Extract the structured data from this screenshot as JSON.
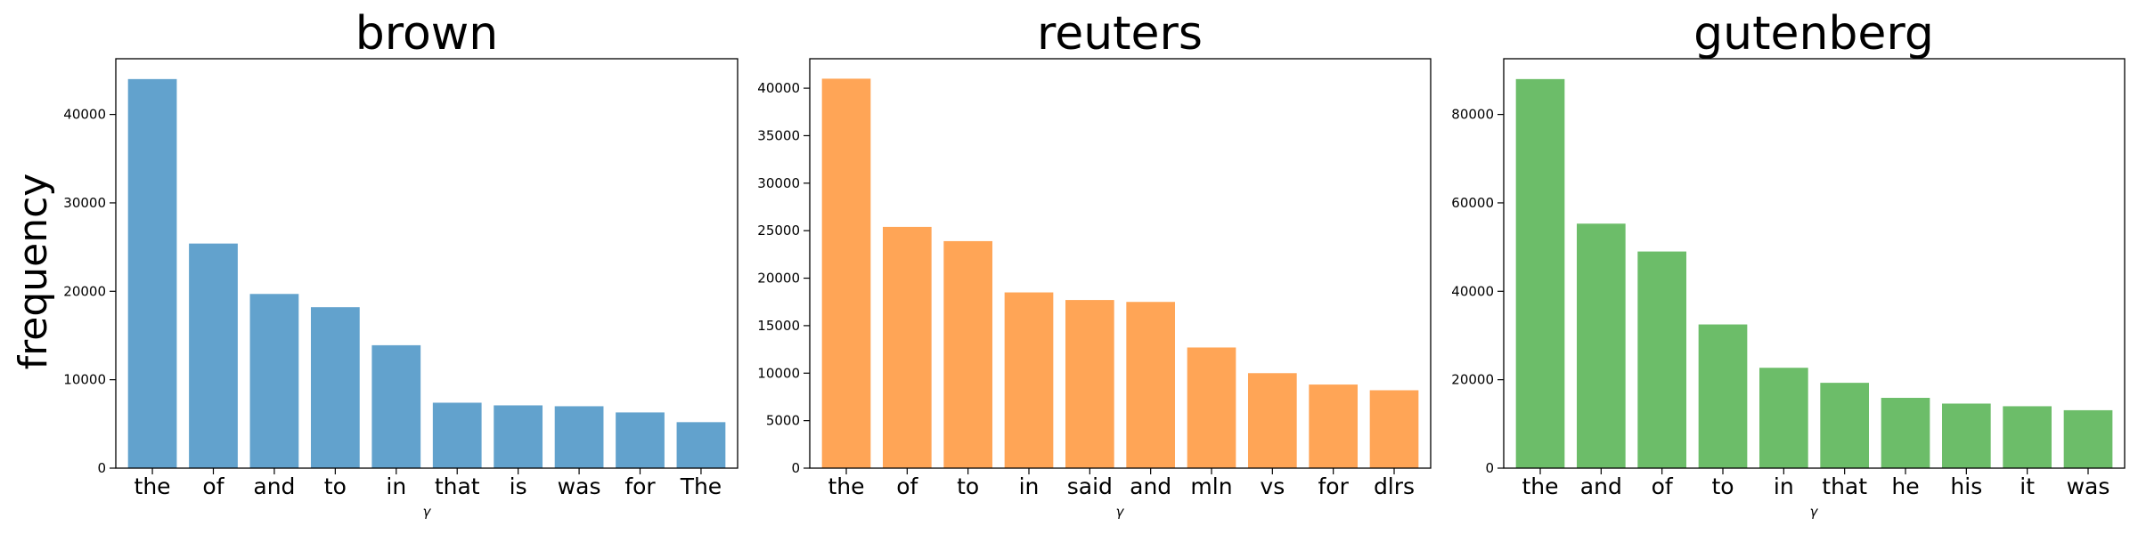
{
  "figure": {
    "ylabel": "frequency"
  },
  "chart_data": [
    {
      "type": "bar",
      "title": "brown",
      "xlabel": "γ",
      "ylabel": "frequency",
      "categories": [
        "the",
        "of",
        "and",
        "to",
        "in",
        "that",
        "is",
        "was",
        "for",
        "The"
      ],
      "values": [
        44000,
        25400,
        19700,
        18200,
        13900,
        7400,
        7100,
        7000,
        6300,
        5200
      ],
      "yticks": [
        0,
        10000,
        20000,
        30000,
        40000
      ],
      "ylim": [
        0,
        46300
      ],
      "color": "#62a2cd",
      "grid": false
    },
    {
      "type": "bar",
      "title": "reuters",
      "xlabel": "γ",
      "categories": [
        "the",
        "of",
        "to",
        "in",
        "said",
        "and",
        "mln",
        "vs",
        "for",
        "dlrs"
      ],
      "values": [
        41000,
        25400,
        23900,
        18500,
        17700,
        17500,
        12700,
        10000,
        8800,
        8200
      ],
      "yticks": [
        0,
        5000,
        10000,
        15000,
        20000,
        25000,
        30000,
        35000,
        40000
      ],
      "ylim": [
        0,
        43100
      ],
      "color": "#ffa556",
      "grid": false
    },
    {
      "type": "bar",
      "title": "gutenberg",
      "xlabel": "γ",
      "categories": [
        "the",
        "and",
        "of",
        "to",
        "in",
        "that",
        "he",
        "his",
        "it",
        "was"
      ],
      "values": [
        88000,
        55300,
        49000,
        32500,
        22700,
        19300,
        15900,
        14600,
        14000,
        13100
      ],
      "yticks": [
        0,
        20000,
        40000,
        60000,
        80000
      ],
      "ylim": [
        0,
        92600
      ],
      "color": "#6cbd69",
      "grid": false
    }
  ]
}
